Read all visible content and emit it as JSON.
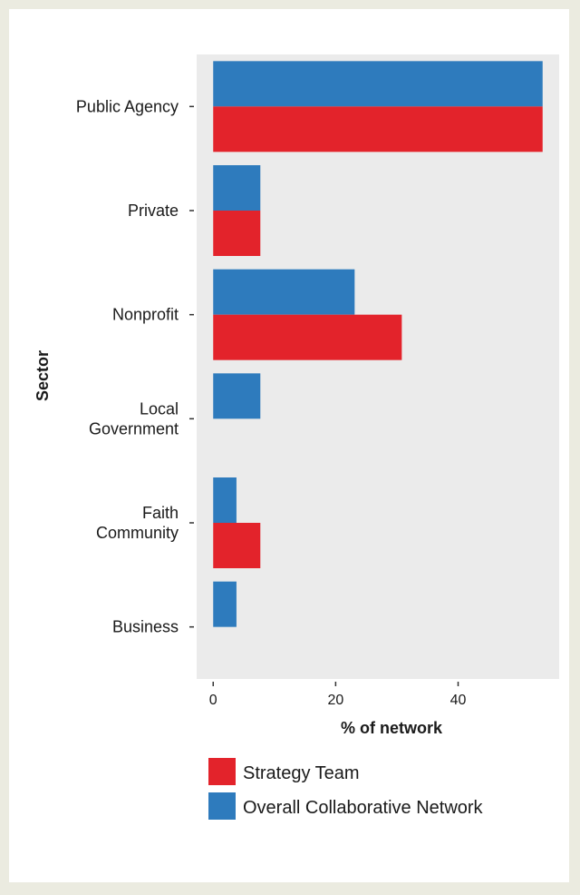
{
  "chart_data": {
    "type": "bar",
    "orientation": "horizontal",
    "categories": [
      "Public Agency",
      "Private",
      "Nonprofit",
      "Local Government",
      "Faith Community",
      "Business"
    ],
    "category_lines": [
      [
        "Public Agency"
      ],
      [
        "Private"
      ],
      [
        "Nonprofit"
      ],
      [
        "Local",
        "Government"
      ],
      [
        "Faith",
        "Community"
      ],
      [
        "Business"
      ]
    ],
    "series": [
      {
        "name": "Overall Collaborative Network",
        "color": "#2e7bbd",
        "values": [
          53.8,
          7.7,
          23.1,
          7.7,
          3.8,
          3.8
        ]
      },
      {
        "name": "Strategy Team",
        "color": "#e3232b",
        "values": [
          53.8,
          7.7,
          30.8,
          0,
          7.7,
          0
        ]
      }
    ],
    "xlabel": "% of network",
    "ylabel": "Sector",
    "xlim": [
      -2.7,
      56.5
    ],
    "xticks": [
      0,
      20,
      40
    ],
    "grid": false,
    "panel_background": "#ebebeb",
    "legend": {
      "placement": "bottom",
      "entries": [
        {
          "label": "Strategy Team",
          "color": "#e3232b"
        },
        {
          "label": "Overall Collaborative Network",
          "color": "#2e7bbd"
        }
      ]
    }
  }
}
